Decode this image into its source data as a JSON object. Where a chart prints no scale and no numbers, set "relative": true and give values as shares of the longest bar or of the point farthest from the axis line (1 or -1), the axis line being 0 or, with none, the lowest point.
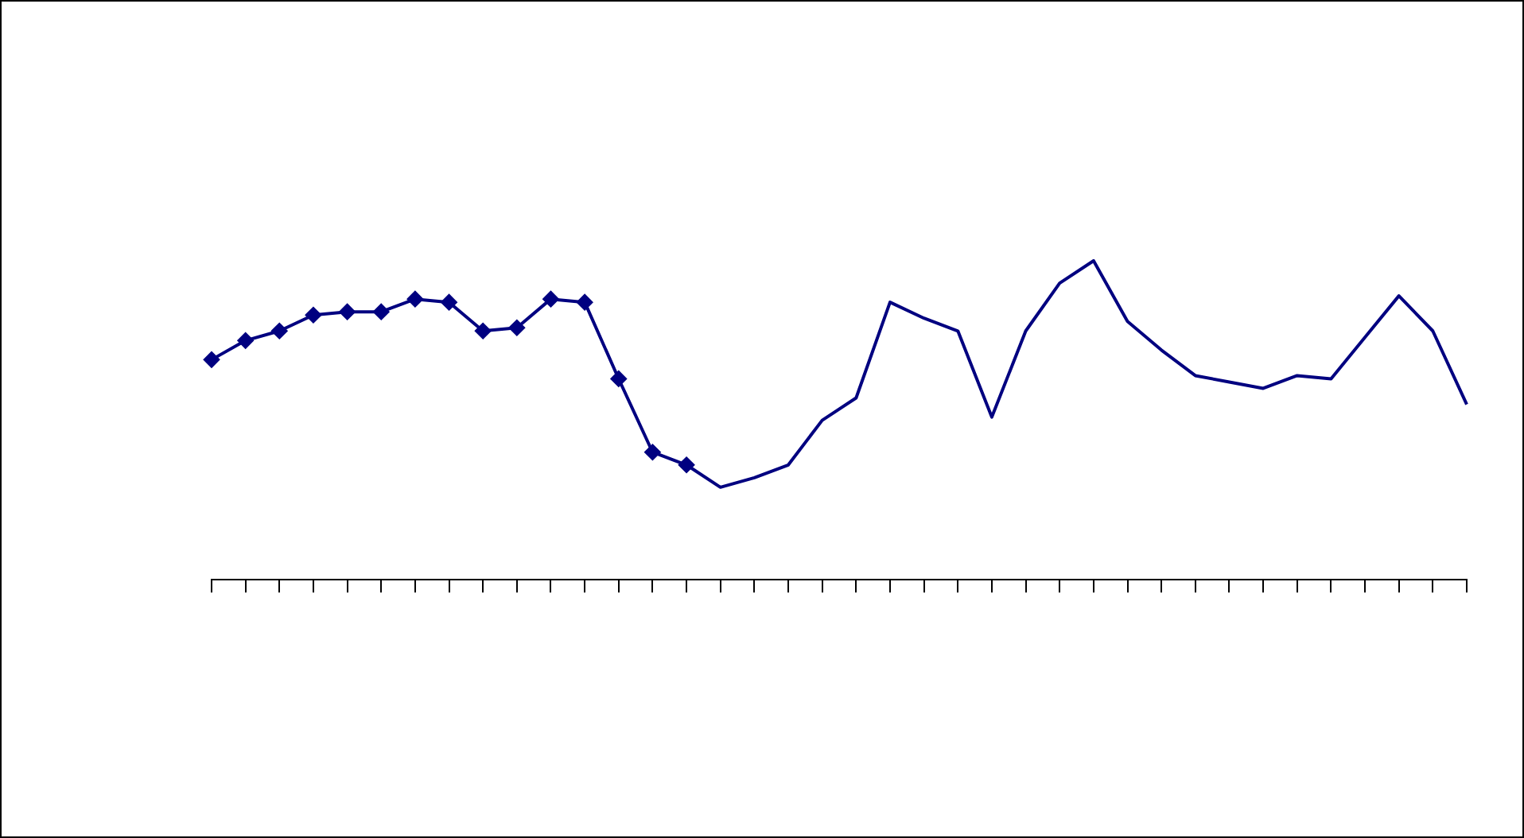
{
  "chart_data": {
    "type": "line",
    "relative": true,
    "grid": false,
    "legend": false,
    "categories": [
      null,
      null,
      null,
      null,
      null,
      null,
      null,
      null,
      null,
      null,
      null,
      null,
      null,
      null,
      null,
      null,
      null,
      null,
      null,
      null,
      null,
      null,
      null,
      null,
      null,
      null,
      null,
      null,
      null,
      null,
      null,
      null,
      null,
      null,
      null,
      null,
      null,
      null
    ],
    "series": [
      {
        "color": "#000080",
        "marker": "diamond",
        "values": [
          0.69,
          0.75,
          0.78,
          0.83,
          0.84,
          0.84,
          0.88,
          0.87,
          0.78,
          0.79,
          0.88,
          0.87,
          0.63,
          0.4,
          0.36,
          null,
          null,
          null,
          null,
          null,
          null,
          null,
          null,
          null,
          null,
          null,
          null,
          null,
          null,
          null,
          null,
          null,
          null,
          null,
          null,
          null,
          null,
          null
        ]
      },
      {
        "color": "#000080",
        "marker": "none",
        "values": [
          null,
          null,
          null,
          null,
          null,
          null,
          null,
          null,
          null,
          null,
          null,
          null,
          null,
          null,
          0.36,
          0.29,
          0.32,
          0.36,
          0.5,
          0.57,
          0.87,
          0.82,
          0.78,
          0.51,
          0.78,
          0.93,
          1,
          0.81,
          0.72,
          0.64,
          0.62,
          0.6,
          0.64,
          0.63,
          0.76,
          0.89,
          0.78,
          0.55
        ]
      }
    ]
  }
}
